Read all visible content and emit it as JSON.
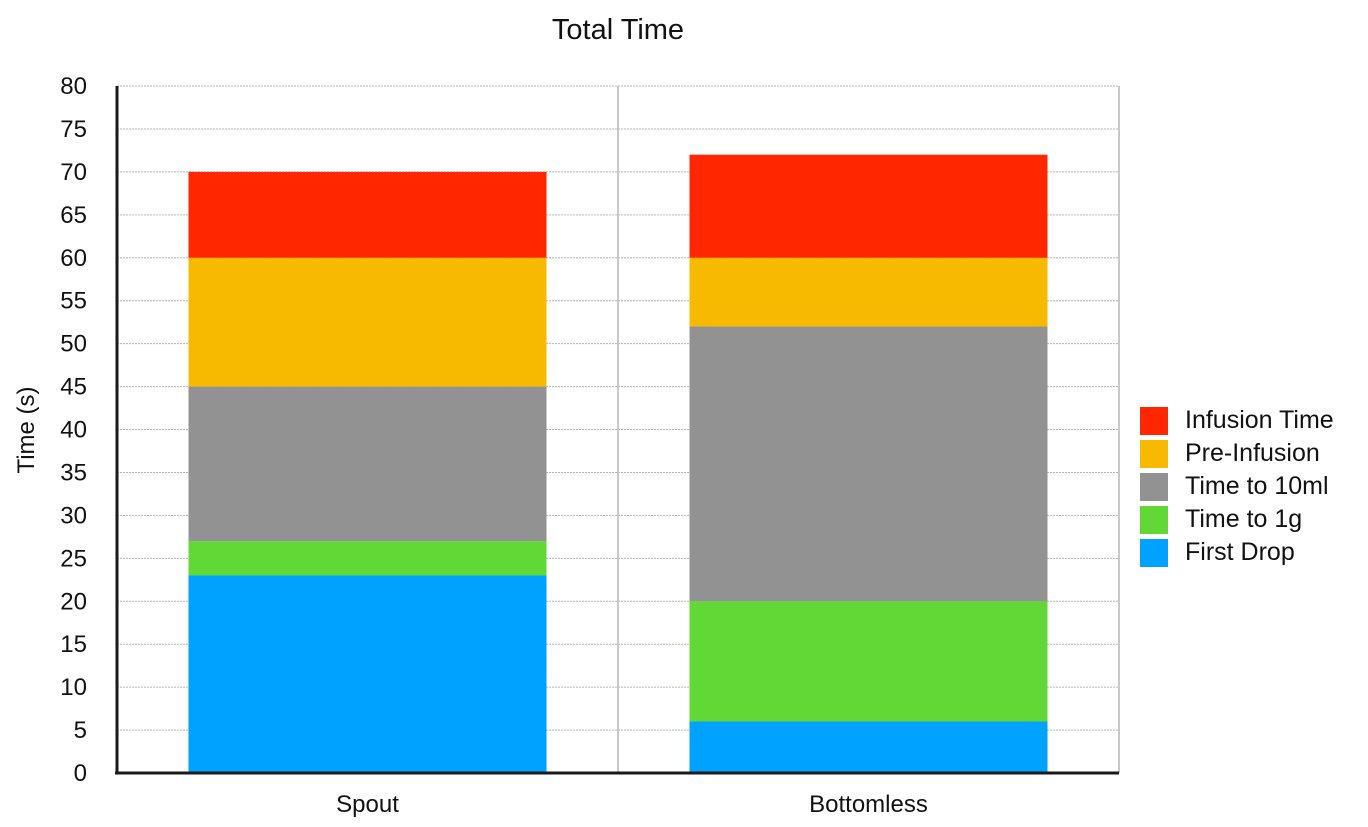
{
  "chart_data": {
    "type": "bar",
    "stacked": true,
    "title": "Total Time",
    "xlabel": "",
    "ylabel": "Time (s)",
    "ylim": [
      0,
      80
    ],
    "ytick_step": 5,
    "grid": true,
    "legend_position": "right",
    "categories": [
      "Spout",
      "Bottomless"
    ],
    "series": [
      {
        "name": "First Drop",
        "color": "#00a2ff",
        "values": [
          23,
          6
        ]
      },
      {
        "name": "Time to 1g",
        "color": "#61d836",
        "values": [
          4,
          14
        ]
      },
      {
        "name": "Time to 10ml",
        "color": "#929292",
        "values": [
          18,
          32
        ]
      },
      {
        "name": "Pre-Infusion",
        "color": "#f8ba00",
        "values": [
          15,
          8
        ]
      },
      {
        "name": "Infusion Time",
        "color": "#ff2600",
        "values": [
          10,
          12
        ]
      }
    ],
    "legend_order": [
      "Infusion Time",
      "Pre-Infusion",
      "Time to 10ml",
      "Time to 1g",
      "First Drop"
    ]
  }
}
